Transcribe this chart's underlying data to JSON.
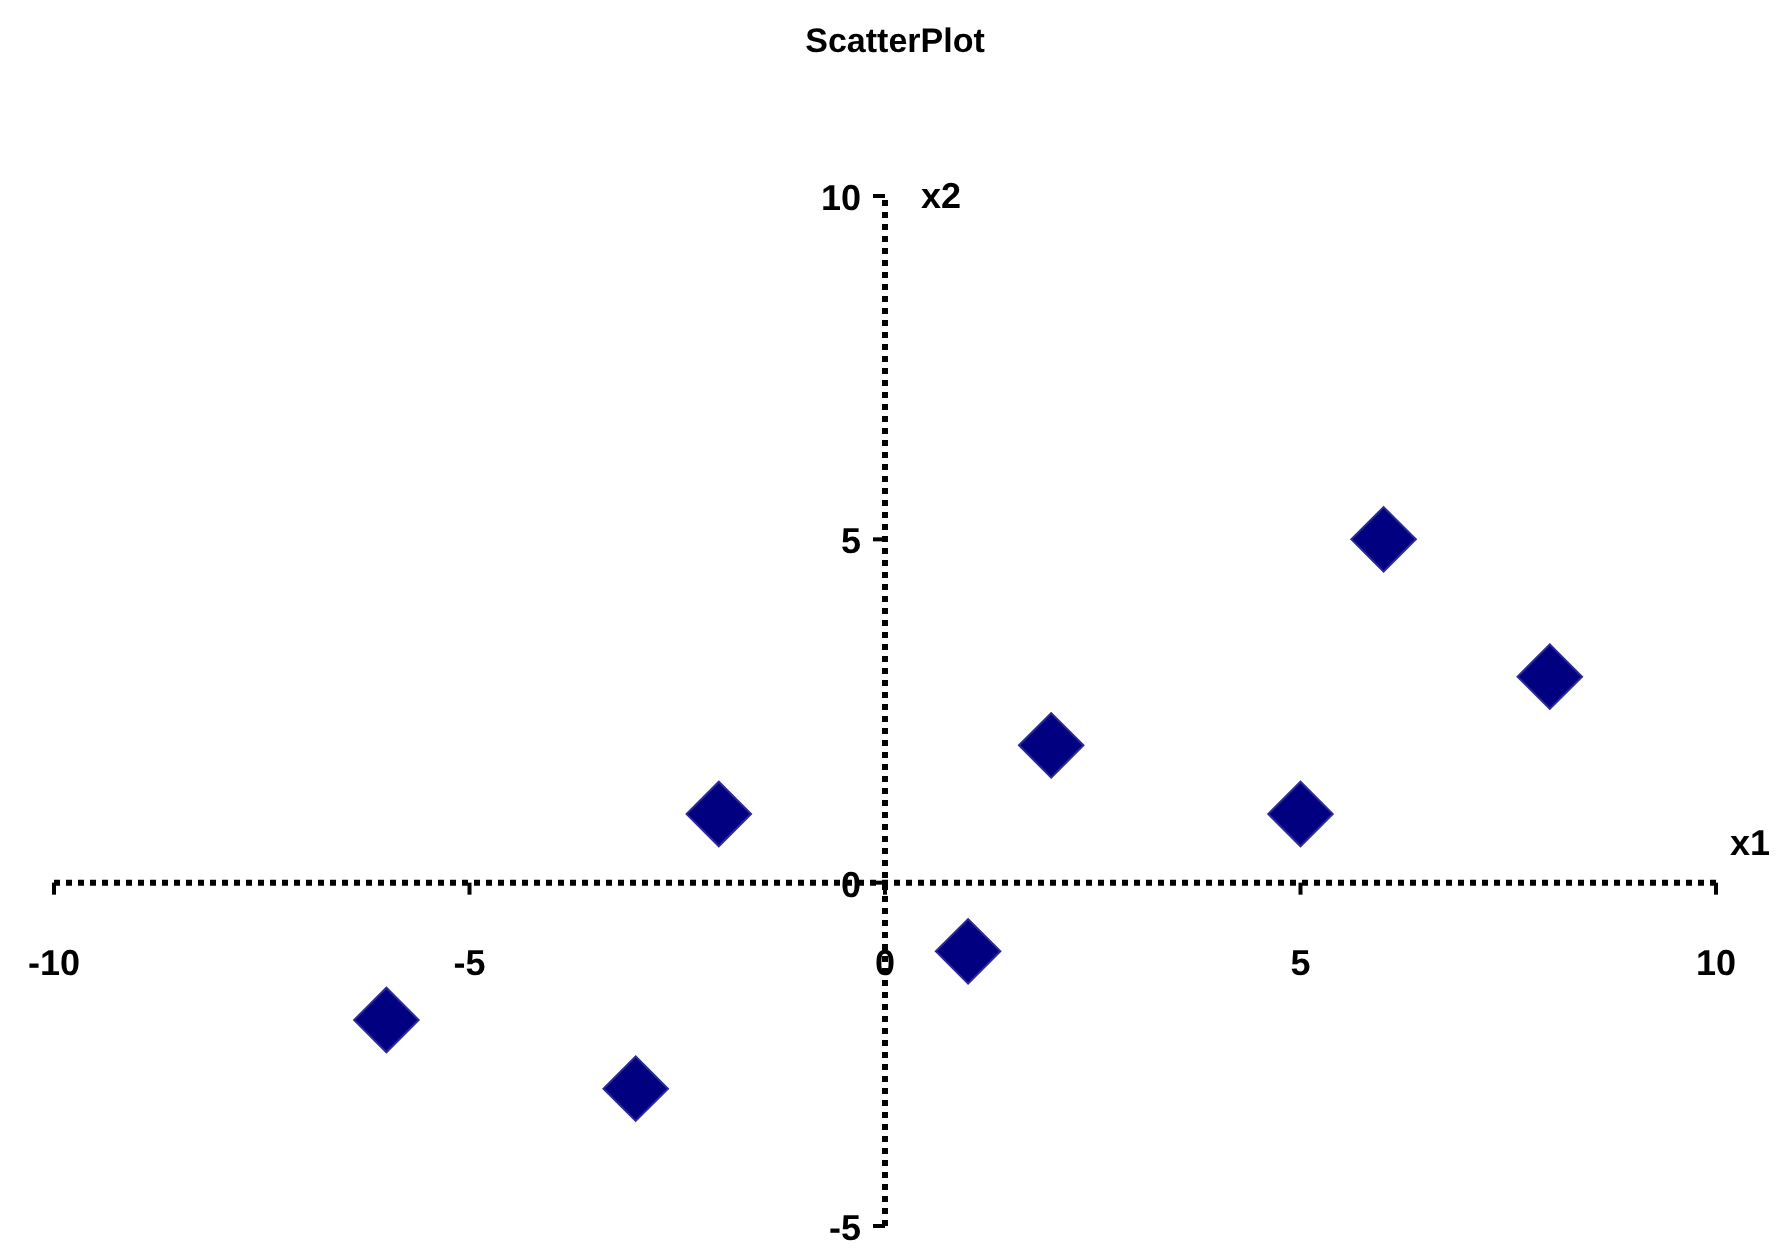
{
  "chart_data": {
    "type": "scatter",
    "title": "ScatterPlot",
    "xlabel": "x1",
    "ylabel": "x2",
    "x": [
      -6,
      -3,
      -2,
      1,
      2,
      5,
      6,
      8
    ],
    "series": [
      {
        "color": "#000080",
        "values": [
          -2,
          -3,
          1,
          -1,
          2,
          1,
          5,
          3
        ]
      }
    ],
    "xlim": [
      -10,
      10
    ],
    "ylim": [
      -5,
      10
    ],
    "xticks": [
      -10,
      -5,
      0,
      5,
      10
    ],
    "yticks": [
      -5,
      0,
      5,
      10
    ],
    "marker": "diamond"
  }
}
